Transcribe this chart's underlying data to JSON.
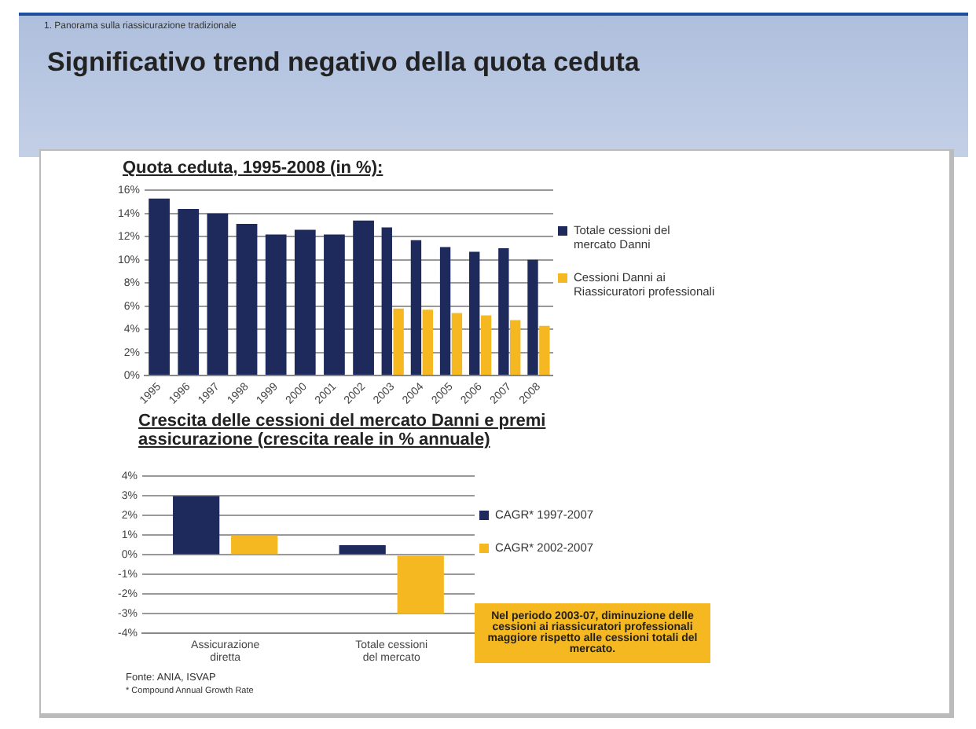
{
  "chart_data": [
    {
      "type": "other",
      "subtitle": "1. Panorama sulla riassicurazione tradizionale",
      "title": "Significativo trend negativo della quota ceduta"
    },
    {
      "type": "bar",
      "title": "Quota ceduta, 1995-2008 (in %):",
      "categories": [
        "1995",
        "1996",
        "1997",
        "1998",
        "1999",
        "2000",
        "2001",
        "2002",
        "2003",
        "2004",
        "2005",
        "2006",
        "2007",
        "2008"
      ],
      "series": [
        {
          "name": "Totale cessioni del mercato Danni",
          "color": "#1f2a5c",
          "values": [
            15.3,
            14.4,
            14.0,
            13.1,
            12.2,
            12.6,
            12.2,
            13.4,
            12.8,
            11.7,
            11.1,
            10.7,
            11.0,
            10.0
          ]
        },
        {
          "name": "Cessioni Danni ai Riassicuratori professionali",
          "color": "#f5b820",
          "values": [
            null,
            null,
            null,
            null,
            null,
            null,
            null,
            null,
            5.8,
            5.7,
            5.4,
            5.2,
            4.8,
            4.3
          ]
        }
      ],
      "ylim": [
        0,
        16
      ],
      "yticks": [
        {
          "value": 0,
          "label": "0%"
        },
        {
          "value": 2,
          "label": "2%"
        },
        {
          "value": 4,
          "label": "4%"
        },
        {
          "value": 6,
          "label": "6%"
        },
        {
          "value": 8,
          "label": "8%"
        },
        {
          "value": 10,
          "label": "10%"
        },
        {
          "value": 12,
          "label": "12%"
        },
        {
          "value": 14,
          "label": "14%"
        },
        {
          "value": 16,
          "label": "16%"
        }
      ],
      "grid": "y",
      "legend": "right"
    },
    {
      "type": "bar",
      "title": "Crescita delle cessioni del mercato Danni e premi assicurazione (crescita reale in % annuale)",
      "categories": [
        "Assicurazione diretta",
        "Totale cessioni del mercato"
      ],
      "series": [
        {
          "name": "CAGR* 1997-2007",
          "color": "#1f2a5c",
          "values": [
            3.0,
            0.5
          ]
        },
        {
          "name": "CAGR* 2002-2007",
          "color": "#f5b820",
          "values": [
            1.0,
            -3.0
          ]
        }
      ],
      "ylim": [
        -4,
        4
      ],
      "yticks": [
        {
          "value": -4,
          "label": "-4%"
        },
        {
          "value": -3,
          "label": "-3%"
        },
        {
          "value": -2,
          "label": "-2%"
        },
        {
          "value": -1,
          "label": "-1%"
        },
        {
          "value": 0,
          "label": "0%"
        },
        {
          "value": 1,
          "label": "1%"
        },
        {
          "value": 2,
          "label": "2%"
        },
        {
          "value": 3,
          "label": "3%"
        },
        {
          "value": 4,
          "label": "4%"
        }
      ],
      "grid": "y",
      "legend": "right",
      "annotations": [
        "Fonte: ANIA, ISVAP",
        "* Compound Annual Growth Rate",
        "Nel periodo 2003-07, diminuzione delle cessioni ai riassicuratori professionali maggiore rispetto alle cessioni totali del mercato."
      ]
    }
  ]
}
